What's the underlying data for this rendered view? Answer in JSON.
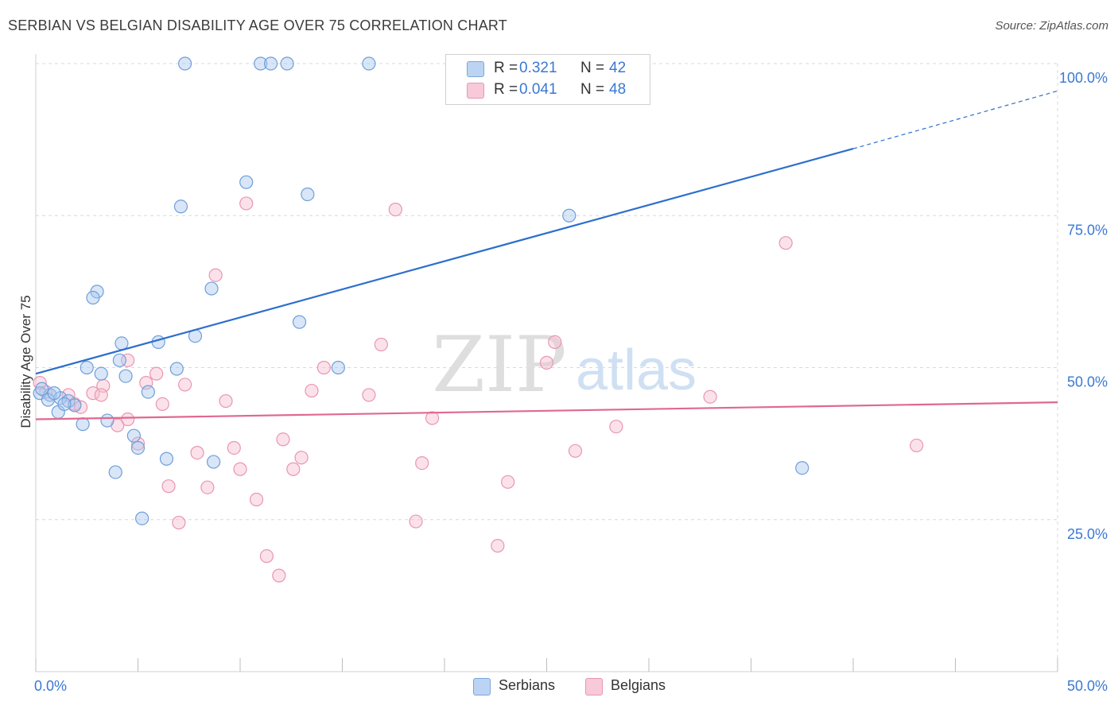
{
  "title": "SERBIAN VS BELGIAN DISABILITY AGE OVER 75 CORRELATION CHART",
  "source": "Source: ZipAtlas.com",
  "watermark": {
    "zip": "ZIP",
    "atlas": "atlas"
  },
  "legend_top": {
    "serbians": {
      "r_label": "R =",
      "r_value": "0.321",
      "n_label": "N =",
      "n_value": "42"
    },
    "belgians": {
      "r_label": "R =",
      "r_value": "0.041",
      "n_label": "N =",
      "n_value": "48"
    }
  },
  "legend_bottom": {
    "serbians": "Serbians",
    "belgians": "Belgians"
  },
  "colors": {
    "serbians_fill": "#a9c8f0",
    "serbians_stroke": "#6f9fd8",
    "serbians_line": "#2c6fcc",
    "belgians_fill": "#f6bfd0",
    "belgians_stroke": "#e996b0",
    "belgians_line": "#e06890",
    "axis_text": "#3a78d4",
    "grid": "#d8d8d8"
  },
  "chart_data": {
    "type": "scatter",
    "title": "SERBIAN VS BELGIAN DISABILITY AGE OVER 75 CORRELATION CHART",
    "xlabel": "",
    "ylabel": "Disability Age Over 75",
    "xlim": [
      0,
      50
    ],
    "ylim": [
      0,
      100
    ],
    "x_tick_labels": [
      "0.0%",
      "50.0%"
    ],
    "y_ticks": [
      25,
      50,
      75,
      100
    ],
    "y_tick_labels": [
      "25.0%",
      "50.0%",
      "75.0%",
      "100.0%"
    ],
    "grid": true,
    "series": [
      {
        "name": "Serbians",
        "r": 0.321,
        "n": 42,
        "trend": {
          "x0": 0,
          "y0": 49.0,
          "x1": 40,
          "y1": 86.0,
          "dashed_to_x": 50,
          "dashed_to_y": 95.5
        },
        "points": [
          [
            7.3,
            100
          ],
          [
            11.0,
            100
          ],
          [
            11.5,
            100
          ],
          [
            12.3,
            100
          ],
          [
            16.3,
            100
          ],
          [
            10.3,
            80.5
          ],
          [
            13.3,
            78.5
          ],
          [
            7.1,
            76.5
          ],
          [
            26.1,
            75.0
          ],
          [
            3.0,
            62.5
          ],
          [
            2.8,
            61.5
          ],
          [
            8.6,
            63.0
          ],
          [
            12.9,
            57.5
          ],
          [
            4.2,
            54.0
          ],
          [
            6.0,
            54.2
          ],
          [
            7.8,
            55.2
          ],
          [
            4.1,
            51.2
          ],
          [
            2.5,
            50.0
          ],
          [
            3.2,
            49.0
          ],
          [
            4.4,
            48.6
          ],
          [
            6.9,
            49.8
          ],
          [
            14.8,
            50.0
          ],
          [
            5.5,
            46.0
          ],
          [
            0.2,
            45.8
          ],
          [
            0.7,
            45.5
          ],
          [
            1.2,
            45.0
          ],
          [
            1.6,
            44.5
          ],
          [
            1.9,
            43.8
          ],
          [
            0.6,
            44.7
          ],
          [
            1.1,
            42.7
          ],
          [
            2.3,
            40.7
          ],
          [
            3.5,
            41.3
          ],
          [
            4.8,
            38.8
          ],
          [
            5.0,
            36.8
          ],
          [
            6.4,
            35.0
          ],
          [
            8.7,
            34.5
          ],
          [
            3.9,
            32.8
          ],
          [
            5.2,
            25.2
          ],
          [
            37.5,
            33.5
          ],
          [
            0.9,
            45.8
          ],
          [
            1.4,
            44.0
          ],
          [
            0.3,
            46.5
          ]
        ]
      },
      {
        "name": "Belgians",
        "r": 0.041,
        "n": 48,
        "trend": {
          "x0": 0,
          "y0": 41.5,
          "x1": 50,
          "y1": 44.3
        },
        "points": [
          [
            10.3,
            77.0
          ],
          [
            17.6,
            76.0
          ],
          [
            36.7,
            70.5
          ],
          [
            8.8,
            65.2
          ],
          [
            16.9,
            53.8
          ],
          [
            25.4,
            54.2
          ],
          [
            25.0,
            50.8
          ],
          [
            14.1,
            50.0
          ],
          [
            4.5,
            51.2
          ],
          [
            5.9,
            49.0
          ],
          [
            7.3,
            47.2
          ],
          [
            5.4,
            47.5
          ],
          [
            3.3,
            47.0
          ],
          [
            2.8,
            45.8
          ],
          [
            3.2,
            45.5
          ],
          [
            0.5,
            46.0
          ],
          [
            1.6,
            45.5
          ],
          [
            1.9,
            44.0
          ],
          [
            6.2,
            44.0
          ],
          [
            9.3,
            44.5
          ],
          [
            13.5,
            46.2
          ],
          [
            16.3,
            45.5
          ],
          [
            33.0,
            45.2
          ],
          [
            19.4,
            41.7
          ],
          [
            4.5,
            41.5
          ],
          [
            4.0,
            40.5
          ],
          [
            28.4,
            40.3
          ],
          [
            12.1,
            38.2
          ],
          [
            5.0,
            37.5
          ],
          [
            9.7,
            36.8
          ],
          [
            7.9,
            36.0
          ],
          [
            26.4,
            36.3
          ],
          [
            43.1,
            37.2
          ],
          [
            13.0,
            35.2
          ],
          [
            10.0,
            33.3
          ],
          [
            12.6,
            33.3
          ],
          [
            18.9,
            34.3
          ],
          [
            6.5,
            30.5
          ],
          [
            8.4,
            30.3
          ],
          [
            23.1,
            31.2
          ],
          [
            10.8,
            28.3
          ],
          [
            7.0,
            24.5
          ],
          [
            18.6,
            24.7
          ],
          [
            22.6,
            20.7
          ],
          [
            11.3,
            19.0
          ],
          [
            11.9,
            15.8
          ],
          [
            0.2,
            47.5
          ],
          [
            2.2,
            43.5
          ]
        ]
      }
    ]
  }
}
